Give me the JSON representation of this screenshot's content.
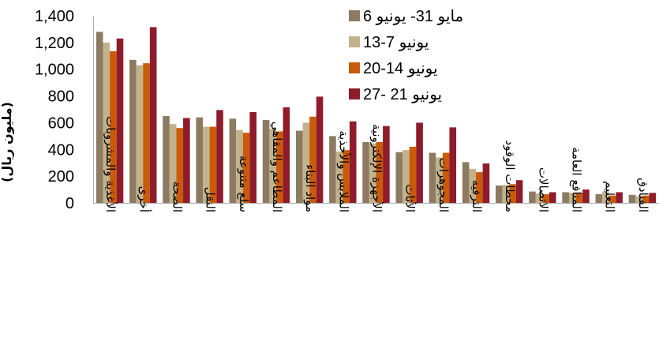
{
  "chart_data": {
    "type": "bar",
    "ylabel": "(مليون ريال)",
    "ylim": [
      0,
      1400
    ],
    "yticks": [
      0,
      200,
      400,
      600,
      800,
      1000,
      1200,
      1400
    ],
    "ytick_labels": [
      "0",
      "200",
      "400",
      "600",
      "800",
      "1,000",
      "1,200",
      "1,400"
    ],
    "grid": false,
    "legend_position": "top-right",
    "categories": [
      "الأغذية والمشروبات",
      "أخرى",
      "الصحة",
      "النقل",
      "سلع متنوعة",
      "المطاعم والمقاهي",
      "مواد البناء",
      "الملابس والأحذية",
      "الأجهزة الإلكترونية",
      "الأثاث",
      "المجوهرات",
      "الترفيه",
      "محطات الوقود",
      "الاتصالات",
      "المنافع العامة",
      "التعليم",
      "الفنادق"
    ],
    "series": [
      {
        "name": "مايو 31- يونيو 6",
        "color": "#8c7b62",
        "values": [
          1280,
          1070,
          650,
          640,
          630,
          620,
          540,
          500,
          455,
          380,
          375,
          305,
          130,
          85,
          80,
          65,
          60
        ]
      },
      {
        "name": "يونيو 7-13",
        "color": "#c2b28c",
        "values": [
          1200,
          1030,
          590,
          570,
          545,
          555,
          600,
          385,
          445,
          395,
          340,
          255,
          135,
          70,
          75,
          85,
          50
        ]
      },
      {
        "name": "يونيو 14-20",
        "color": "#c85a0a",
        "values": [
          1135,
          1045,
          560,
          570,
          525,
          535,
          645,
          395,
          455,
          420,
          375,
          230,
          140,
          65,
          75,
          55,
          55
        ]
      },
      {
        "name": "يونيو 21 -27",
        "color": "#8e1c2a",
        "values": [
          1230,
          1315,
          635,
          695,
          680,
          715,
          795,
          610,
          575,
          600,
          565,
          295,
          170,
          80,
          100,
          80,
          75
        ]
      }
    ]
  }
}
